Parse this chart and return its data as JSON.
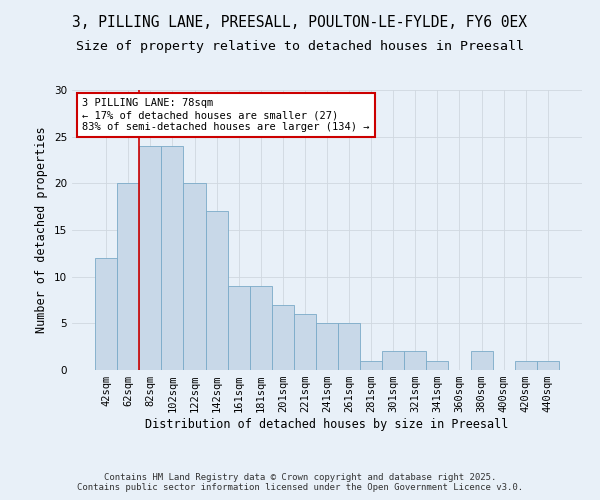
{
  "title": "3, PILLING LANE, PREESALL, POULTON-LE-FYLDE, FY6 0EX",
  "subtitle": "Size of property relative to detached houses in Preesall",
  "xlabel": "Distribution of detached houses by size in Preesall",
  "ylabel": "Number of detached properties",
  "categories": [
    "42sqm",
    "62sqm",
    "82sqm",
    "102sqm",
    "122sqm",
    "142sqm",
    "161sqm",
    "181sqm",
    "201sqm",
    "221sqm",
    "241sqm",
    "261sqm",
    "281sqm",
    "301sqm",
    "321sqm",
    "341sqm",
    "360sqm",
    "380sqm",
    "400sqm",
    "420sqm",
    "440sqm"
  ],
  "values": [
    12,
    20,
    24,
    24,
    20,
    17,
    9,
    9,
    7,
    6,
    5,
    5,
    1,
    2,
    2,
    1,
    0,
    2,
    0,
    1,
    1
  ],
  "bar_color": "#c8d8e8",
  "bar_edge_color": "#7aaac8",
  "bg_color": "#e8f0f8",
  "grid_color": "#d0d8e0",
  "annotation_text": "3 PILLING LANE: 78sqm\n← 17% of detached houses are smaller (27)\n83% of semi-detached houses are larger (134) →",
  "annotation_box_color": "white",
  "annotation_box_edge": "#cc0000",
  "vline_color": "#cc0000",
  "vline_pos": 1.5,
  "ylim": [
    0,
    30
  ],
  "yticks": [
    0,
    5,
    10,
    15,
    20,
    25,
    30
  ],
  "footer": "Contains HM Land Registry data © Crown copyright and database right 2025.\nContains public sector information licensed under the Open Government Licence v3.0.",
  "title_fontsize": 10.5,
  "subtitle_fontsize": 9.5,
  "xlabel_fontsize": 8.5,
  "ylabel_fontsize": 8.5,
  "tick_fontsize": 7.5,
  "annot_fontsize": 7.5,
  "footer_fontsize": 6.5
}
